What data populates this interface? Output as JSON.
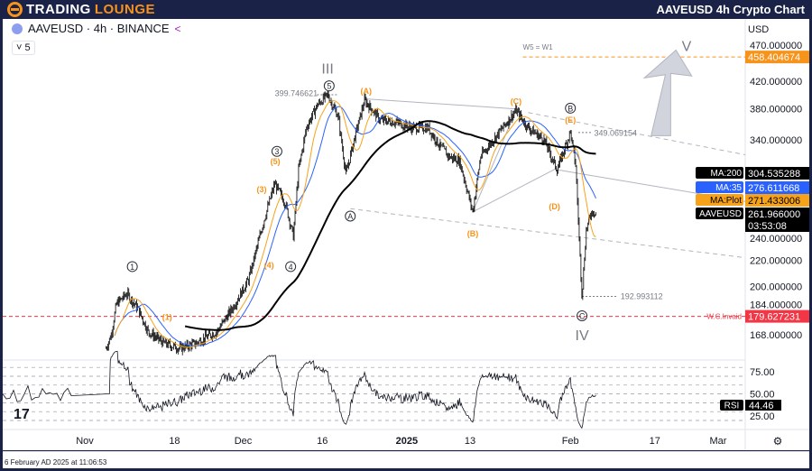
{
  "header": {
    "brand_part1": "TRADING",
    "brand_part2": "LOUNGE",
    "title": "AAVEUSD 4h Crypto Chart"
  },
  "symbol": {
    "label": "AAVEUSD · 4h · BINANCE",
    "indicator_count": "5",
    "currency": "USD"
  },
  "footer": {
    "timestamp": "6 February AD 2025 at 11:06:53"
  },
  "colors": {
    "ma200": "#000000",
    "ma35": "#2962ff",
    "maplot": "#f7a21b",
    "invalid": "#f23645",
    "wave_orange": "#f7931a",
    "rsi": "#131722"
  },
  "chart_data": {
    "type": "candlestick",
    "x_origin": "2024-11-01",
    "x_unit": "days",
    "price_keypoints": [
      [
        4,
        160
      ],
      [
        5,
        168
      ],
      [
        6,
        188
      ],
      [
        8,
        195
      ],
      [
        10,
        185
      ],
      [
        12,
        170
      ],
      [
        15,
        163
      ],
      [
        18,
        160
      ],
      [
        21,
        163
      ],
      [
        25,
        170
      ],
      [
        28,
        185
      ],
      [
        31,
        205
      ],
      [
        34,
        255
      ],
      [
        36,
        290
      ],
      [
        38,
        270
      ],
      [
        39.5,
        240
      ],
      [
        40.5,
        305
      ],
      [
        42,
        355
      ],
      [
        44,
        385
      ],
      [
        46,
        400
      ],
      [
        48,
        370
      ],
      [
        49.5,
        300
      ],
      [
        51,
        340
      ],
      [
        53,
        392
      ],
      [
        56,
        365
      ],
      [
        59,
        362
      ],
      [
        62,
        355
      ],
      [
        65,
        355
      ],
      [
        67,
        335
      ],
      [
        69,
        320
      ],
      [
        71,
        315
      ],
      [
        73.5,
        262
      ],
      [
        75,
        320
      ],
      [
        78,
        345
      ],
      [
        81.7,
        378
      ],
      [
        84,
        355
      ],
      [
        87,
        340
      ],
      [
        89.5,
        305
      ],
      [
        92,
        350
      ],
      [
        93,
        310
      ],
      [
        94.2,
        193
      ],
      [
        95,
        245
      ],
      [
        96,
        262
      ],
      [
        97,
        262
      ]
    ],
    "y_axis": {
      "scale": "log",
      "ticks": [
        470,
        420,
        380,
        340,
        240,
        220,
        200,
        184,
        168
      ]
    },
    "x_ticks": [
      {
        "label": "Nov",
        "day": 0
      },
      {
        "label": "18",
        "day": 17
      },
      {
        "label": "Dec",
        "day": 30
      },
      {
        "label": "16",
        "day": 45
      },
      {
        "label": "2025",
        "day": 61
      },
      {
        "label": "13",
        "day": 73
      },
      {
        "label": "Feb",
        "day": 92
      },
      {
        "label": "17",
        "day": 108
      },
      {
        "label": "Mar",
        "day": 120
      }
    ],
    "price_tags": [
      {
        "label": "MA:200",
        "value": "304.535288",
        "price": 304.535288,
        "color": "#000000"
      },
      {
        "label": "MA:35",
        "value": "276.611668",
        "price": 276.611668,
        "color": "#2962ff"
      },
      {
        "label": "MA:Plot",
        "value": "271.433006",
        "price": 271.433006,
        "color": "#f7a21b"
      },
      {
        "label": "AAVEUSD",
        "value": "261.966000",
        "price": 261.966,
        "color": "#000000",
        "countdown": "03:53:08"
      }
    ],
    "levels": [
      {
        "label": "W5 = W1",
        "value": "458.404674",
        "price": 458.404674,
        "color": "#f7931a"
      },
      {
        "label": "W.C.Invaid",
        "value": "179.627231",
        "price": 179.627231,
        "color": "#f23645"
      }
    ],
    "price_notes": [
      {
        "text": "399.746621",
        "day": 36,
        "price": 402
      },
      {
        "text": "349.069154",
        "day": 96.5,
        "price": 348
      },
      {
        "text": "192.993112",
        "day": 101.5,
        "price": 193
      }
    ],
    "wave_labels": [
      {
        "text": "III",
        "day": 46,
        "price": 440,
        "style": "roman"
      },
      {
        "text": "5",
        "day": 46.3,
        "price": 413,
        "style": "circle"
      },
      {
        "text": "(A)",
        "day": 53.3,
        "price": 405,
        "style": "orange"
      },
      {
        "text": "(C)",
        "day": 81.7,
        "price": 390,
        "style": "orange"
      },
      {
        "text": "B",
        "day": 92,
        "price": 381,
        "style": "circle"
      },
      {
        "text": "(E)",
        "day": 92,
        "price": 365,
        "style": "orange"
      },
      {
        "text": "3",
        "day": 36.4,
        "price": 326,
        "style": "circle"
      },
      {
        "text": "(5)",
        "day": 36.1,
        "price": 314,
        "style": "orange"
      },
      {
        "text": "(3)",
        "day": 33.5,
        "price": 284,
        "style": "orange"
      },
      {
        "text": "(4)",
        "day": 34.9,
        "price": 216,
        "style": "orange"
      },
      {
        "text": "4",
        "day": 39,
        "price": 215,
        "style": "circle"
      },
      {
        "text": "A",
        "day": 50.3,
        "price": 258,
        "style": "circle"
      },
      {
        "text": "(B)",
        "day": 73.5,
        "price": 242,
        "style": "orange"
      },
      {
        "text": "(D)",
        "day": 89,
        "price": 267,
        "style": "orange"
      },
      {
        "text": "C",
        "day": 94.2,
        "price": 180,
        "style": "circle"
      },
      {
        "text": "IV",
        "day": 94.2,
        "price": 168,
        "style": "roman"
      },
      {
        "text": "1",
        "day": 9,
        "price": 215,
        "style": "circle"
      },
      {
        "text": "(1)",
        "day": 15.6,
        "price": 179,
        "style": "orange"
      },
      {
        "text": "V",
        "day": 114,
        "price": 478,
        "style": "roman"
      }
    ],
    "rsi": {
      "label": "RSI",
      "value": "44.46",
      "ticks": [
        "75.00",
        "50.00",
        "25.00"
      ],
      "levels": [
        80,
        70,
        60,
        50,
        40,
        30,
        20
      ]
    }
  }
}
